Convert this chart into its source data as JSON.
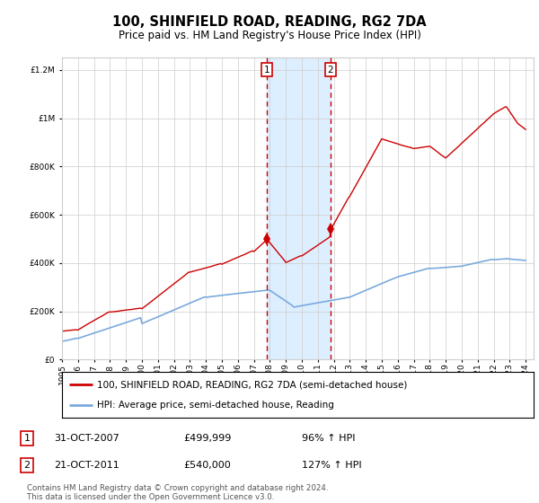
{
  "title": "100, SHINFIELD ROAD, READING, RG2 7DA",
  "subtitle": "Price paid vs. HM Land Registry's House Price Index (HPI)",
  "legend_line1": "100, SHINFIELD ROAD, READING, RG2 7DA (semi-detached house)",
  "legend_line2": "HPI: Average price, semi-detached house, Reading",
  "annotation1_date": "31-OCT-2007",
  "annotation1_price": "£499,999",
  "annotation1_hpi": "96% ↑ HPI",
  "annotation2_date": "21-OCT-2011",
  "annotation2_price": "£540,000",
  "annotation2_hpi": "127% ↑ HPI",
  "footnote": "Contains HM Land Registry data © Crown copyright and database right 2024.\nThis data is licensed under the Open Government Licence v3.0.",
  "hpi_line_color": "#7aaadd",
  "price_line_color": "#cc0000",
  "marker_color": "#cc0000",
  "vline_color": "#cc0000",
  "shade_color": "#ddeeff",
  "ylim_max": 1250000,
  "x_start_year": 1995,
  "x_end_year": 2024,
  "sale1_year": 2007.83,
  "sale2_year": 2011.8,
  "sale1_price": 499999,
  "sale2_price": 540000,
  "background_color": "#ffffff",
  "grid_color": "#cccccc"
}
